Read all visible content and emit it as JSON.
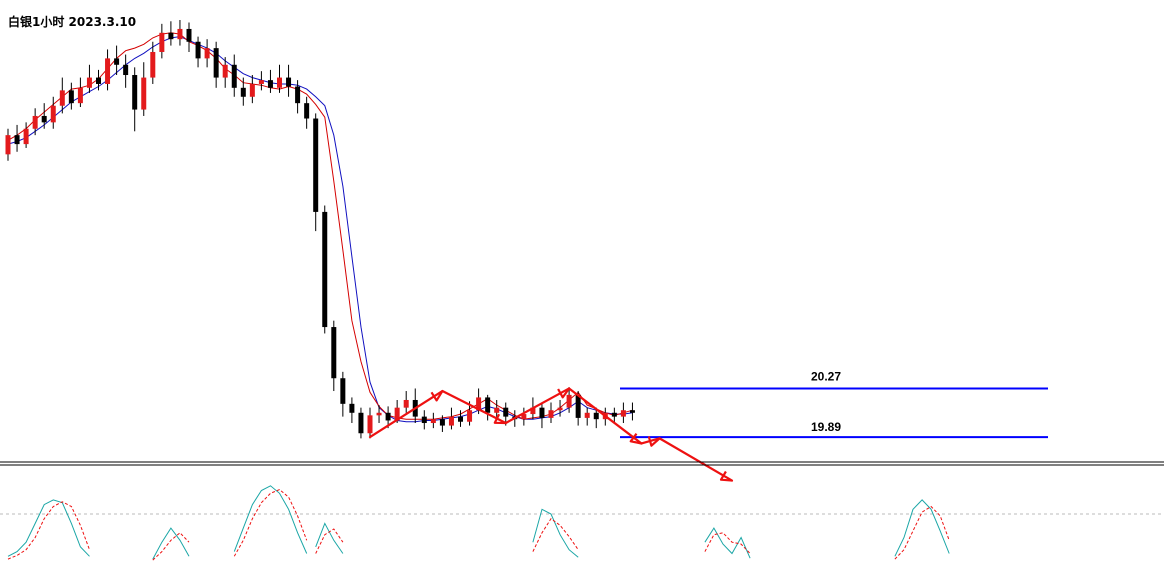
{
  "chart_data": {
    "type": "candlestick",
    "title": "白银1小时 2023.3.10",
    "colors": {
      "up": "#e31a1c",
      "down": "#000000",
      "ma_fast": "#d40000",
      "ma_slow": "#1010c0",
      "levels": "#0000ff",
      "arrows": "#ee1111",
      "k_line": "#1aa6a6",
      "d_line": "#ee1111"
    },
    "price_range": [
      19.75,
      23.15
    ],
    "levels": [
      {
        "label": "20.27",
        "value": 20.27
      },
      {
        "label": "19.89",
        "value": 19.89
      }
    ],
    "pattern_path": [
      [
        40,
        19.89
      ],
      [
        48,
        20.25
      ],
      [
        55,
        20.0
      ],
      [
        62,
        20.27
      ],
      [
        70,
        19.84
      ],
      [
        72,
        19.88
      ],
      [
        80,
        19.55
      ]
    ],
    "ma_fast_values": [
      22.21,
      22.25,
      22.3,
      22.37,
      22.43,
      22.49,
      22.55,
      22.61,
      22.62,
      22.64,
      22.69,
      22.77,
      22.85,
      22.91,
      22.93,
      22.96,
      23.01,
      23.04,
      23.05,
      23.04,
      22.98,
      22.95,
      22.91,
      22.85,
      22.77,
      22.72,
      22.66,
      22.65,
      22.64,
      22.62,
      22.61,
      22.63,
      22.61,
      22.57,
      22.49,
      22.39,
      21.89,
      21.35,
      20.8,
      20.48,
      20.24,
      20.13,
      20.06,
      20.04,
      20.03,
      20.03,
      20.03,
      20.03,
      20.04,
      20.05,
      20.07,
      20.11,
      20.15,
      20.19,
      20.14,
      20.1,
      20.06,
      20.03,
      20.04,
      20.05,
      20.07,
      20.12,
      20.18,
      20.24,
      20.14,
      20.11,
      20.08,
      20.06,
      20.08,
      20.1
    ],
    "ma_slow_values": [
      22.18,
      22.2,
      22.23,
      22.28,
      22.33,
      22.39,
      22.45,
      22.51,
      22.55,
      22.59,
      22.63,
      22.68,
      22.74,
      22.8,
      22.85,
      22.89,
      22.94,
      22.98,
      23.01,
      23.02,
      22.99,
      22.96,
      22.93,
      22.89,
      22.83,
      22.78,
      22.73,
      22.7,
      22.68,
      22.66,
      22.65,
      22.65,
      22.64,
      22.61,
      22.55,
      22.48,
      22.25,
      21.85,
      21.3,
      20.75,
      20.32,
      20.12,
      20.06,
      20.02,
      20.01,
      20.01,
      20.02,
      20.02,
      20.03,
      20.04,
      20.05,
      20.07,
      20.1,
      20.13,
      20.11,
      20.08,
      20.05,
      20.03,
      20.03,
      20.04,
      20.05,
      20.08,
      20.12,
      20.17,
      20.12,
      20.1,
      20.08,
      20.07,
      20.07,
      20.08
    ],
    "candles": [
      [
        22.1,
        22.25,
        22.3,
        22.05
      ],
      [
        22.25,
        22.18,
        22.33,
        22.12
      ],
      [
        22.18,
        22.3,
        22.35,
        22.15
      ],
      [
        22.3,
        22.4,
        22.46,
        22.25
      ],
      [
        22.4,
        22.35,
        22.5,
        22.3
      ],
      [
        22.35,
        22.48,
        22.55,
        22.3
      ],
      [
        22.48,
        22.6,
        22.7,
        22.42
      ],
      [
        22.6,
        22.5,
        22.66,
        22.45
      ],
      [
        22.5,
        22.62,
        22.7,
        22.47
      ],
      [
        22.62,
        22.7,
        22.8,
        22.58
      ],
      [
        22.7,
        22.65,
        22.76,
        22.6
      ],
      [
        22.65,
        22.85,
        22.92,
        22.6
      ],
      [
        22.85,
        22.8,
        22.95,
        22.72
      ],
      [
        22.8,
        22.72,
        22.88,
        22.62
      ],
      [
        22.72,
        22.45,
        22.78,
        22.28
      ],
      [
        22.45,
        22.7,
        22.82,
        22.4
      ],
      [
        22.7,
        22.9,
        22.98,
        22.65
      ],
      [
        22.9,
        23.05,
        23.12,
        22.85
      ],
      [
        23.05,
        23.0,
        23.14,
        22.95
      ],
      [
        23.0,
        23.08,
        23.15,
        22.95
      ],
      [
        23.08,
        22.98,
        23.13,
        22.9
      ],
      [
        22.98,
        22.85,
        23.02,
        22.78
      ],
      [
        22.85,
        22.93,
        23.0,
        22.78
      ],
      [
        22.93,
        22.7,
        22.98,
        22.62
      ],
      [
        22.7,
        22.8,
        22.86,
        22.62
      ],
      [
        22.8,
        22.62,
        22.88,
        22.55
      ],
      [
        22.62,
        22.55,
        22.7,
        22.48
      ],
      [
        22.55,
        22.65,
        22.72,
        22.5
      ],
      [
        22.65,
        22.68,
        22.75,
        22.6
      ],
      [
        22.68,
        22.62,
        22.76,
        22.58
      ],
      [
        22.62,
        22.7,
        22.8,
        22.58
      ],
      [
        22.7,
        22.63,
        22.8,
        22.55
      ],
      [
        22.63,
        22.5,
        22.68,
        22.42
      ],
      [
        22.5,
        22.38,
        22.55,
        22.3
      ],
      [
        22.38,
        21.65,
        22.42,
        21.5
      ],
      [
        21.65,
        20.75,
        21.7,
        20.7
      ],
      [
        20.75,
        20.35,
        20.8,
        20.25
      ],
      [
        20.35,
        20.15,
        20.4,
        20.05
      ],
      [
        20.15,
        20.08,
        20.2,
        20.0
      ],
      [
        20.08,
        19.92,
        20.12,
        19.88
      ],
      [
        19.92,
        20.06,
        20.12,
        19.88
      ],
      [
        20.06,
        20.08,
        20.14,
        20.0
      ],
      [
        20.08,
        20.02,
        20.13,
        19.96
      ],
      [
        20.02,
        20.12,
        20.18,
        20.0
      ],
      [
        20.12,
        20.18,
        20.25,
        20.08
      ],
      [
        20.18,
        20.05,
        20.27,
        20.0
      ],
      [
        20.05,
        20.0,
        20.1,
        19.95
      ],
      [
        20.0,
        20.03,
        20.08,
        19.96
      ],
      [
        20.03,
        19.98,
        20.06,
        19.93
      ],
      [
        19.98,
        20.05,
        20.12,
        19.95
      ],
      [
        20.05,
        20.01,
        20.1,
        19.97
      ],
      [
        20.01,
        20.1,
        20.17,
        19.98
      ],
      [
        20.1,
        20.2,
        20.27,
        20.07
      ],
      [
        20.2,
        20.08,
        20.22,
        20.02
      ],
      [
        20.08,
        20.12,
        20.18,
        20.04
      ],
      [
        20.12,
        20.05,
        20.16,
        19.98
      ],
      [
        20.05,
        20.03,
        20.1,
        19.97
      ],
      [
        20.03,
        20.07,
        20.12,
        19.98
      ],
      [
        20.07,
        20.12,
        20.2,
        20.03
      ],
      [
        20.12,
        20.04,
        20.16,
        19.96
      ],
      [
        20.04,
        20.1,
        20.16,
        20.0
      ],
      [
        20.1,
        20.12,
        20.18,
        20.05
      ],
      [
        20.12,
        20.22,
        20.28,
        20.08
      ],
      [
        20.22,
        20.04,
        20.25,
        19.98
      ],
      [
        20.04,
        20.08,
        20.12,
        19.98
      ],
      [
        20.08,
        20.03,
        20.12,
        19.96
      ],
      [
        20.03,
        20.08,
        20.12,
        19.98
      ],
      [
        20.08,
        20.05,
        20.12,
        20.0
      ],
      [
        20.05,
        20.1,
        20.16,
        20.0
      ],
      [
        20.1,
        20.08,
        20.16,
        20.02
      ]
    ],
    "oscillator": {
      "midline": 50,
      "range": [
        0,
        100
      ],
      "segments": [
        {
          "start": 0,
          "k": [
            5,
            10,
            20,
            40,
            60,
            65,
            62,
            40,
            15,
            5
          ],
          "d": [
            2,
            6,
            12,
            25,
            45,
            58,
            63,
            58,
            38,
            12
          ]
        },
        {
          "start": 16,
          "k": [
            2,
            20,
            35,
            22,
            5
          ],
          "d": [
            1,
            10,
            22,
            30,
            20
          ]
        },
        {
          "start": 25,
          "k": [
            10,
            35,
            60,
            75,
            80,
            72,
            55,
            30,
            8
          ],
          "d": [
            5,
            22,
            45,
            62,
            72,
            76,
            68,
            48,
            22
          ]
        },
        {
          "start": 34,
          "k": [
            15,
            40,
            22,
            8
          ],
          "d": [
            8,
            28,
            34,
            20
          ]
        },
        {
          "start": 58,
          "k": [
            20,
            55,
            50,
            28,
            12,
            4
          ],
          "d": [
            10,
            30,
            45,
            38,
            26,
            12
          ]
        },
        {
          "start": 77,
          "k": [
            20,
            35,
            18,
            8,
            25,
            3
          ],
          "d": [
            10,
            28,
            30,
            20,
            18,
            8
          ]
        },
        {
          "start": 98,
          "k": [
            5,
            25,
            55,
            65,
            55,
            32,
            8
          ],
          "d": [
            2,
            12,
            32,
            52,
            58,
            48,
            22
          ]
        }
      ]
    }
  }
}
